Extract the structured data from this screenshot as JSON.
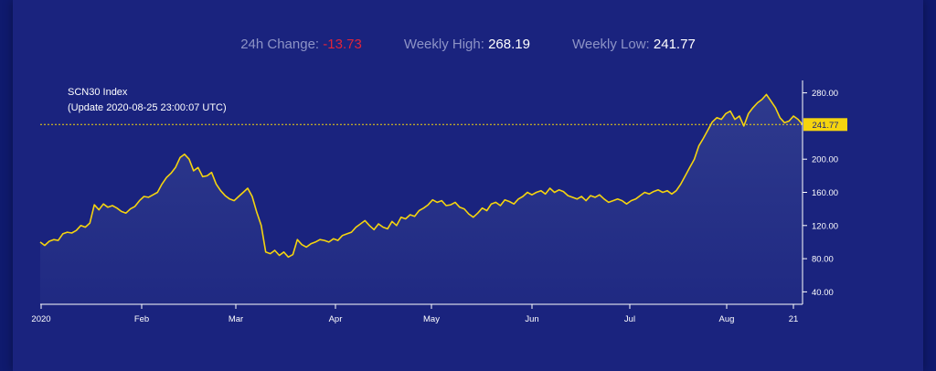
{
  "stats": {
    "change_label": "24h Change:",
    "change_value": "-13.73",
    "high_label": "Weekly High:",
    "high_value": "268.19",
    "low_label": "Weekly Low:",
    "low_value": "241.77"
  },
  "chart_data": {
    "type": "area",
    "title": "SCN30 Index",
    "subtitle": "(Update 2020-08-25 23:00:07 UTC)",
    "x_tick_labels": [
      "2020",
      "Feb",
      "Mar",
      "Apr",
      "May",
      "Jun",
      "Jul",
      "Aug",
      "21"
    ],
    "y_ticks": [
      40,
      80,
      120,
      160,
      200,
      280
    ],
    "y_tick_labels": [
      "40.00",
      "80.00",
      "120.00",
      "160.00",
      "200.00",
      "280.00"
    ],
    "ylim": [
      25,
      295
    ],
    "last_value": 241.77,
    "last_value_label": "241.77",
    "grid": false,
    "colors": {
      "line": "#f5d40f",
      "marker_bg": "#f5d40f",
      "marker_text": "#1a237e",
      "axis": "#ffffff"
    },
    "series": [
      {
        "values": [
          100,
          96,
          101,
          103,
          102,
          110,
          112,
          111,
          114,
          120,
          118,
          123,
          145,
          139,
          146,
          142,
          144,
          141,
          137,
          135,
          140,
          143,
          150,
          155,
          154,
          157,
          160,
          170,
          178,
          183,
          190,
          202,
          206,
          200,
          186,
          190,
          179,
          180,
          184,
          170,
          162,
          156,
          152,
          150,
          155,
          160,
          165,
          155,
          136,
          120,
          88,
          86,
          90,
          84,
          88,
          82,
          85,
          103,
          97,
          94,
          98,
          100,
          103,
          102,
          100,
          104,
          102,
          108,
          110,
          112,
          118,
          122,
          126,
          120,
          115,
          122,
          118,
          116,
          125,
          120,
          130,
          128,
          133,
          131,
          138,
          141,
          145,
          151,
          148,
          150,
          144,
          145,
          148,
          142,
          140,
          134,
          130,
          135,
          141,
          138,
          146,
          148,
          144,
          151,
          149,
          146,
          152,
          155,
          160,
          157,
          160,
          162,
          158,
          165,
          160,
          163,
          161,
          156,
          154,
          152,
          155,
          150,
          156,
          154,
          157,
          152,
          148,
          150,
          152,
          150,
          146,
          150,
          152,
          156,
          160,
          158,
          161,
          163,
          160,
          162,
          158,
          162,
          170,
          180,
          190,
          200,
          216,
          225,
          235,
          245,
          250,
          248,
          255,
          258,
          248,
          252,
          240,
          255,
          262,
          268,
          272,
          278,
          270,
          262,
          250,
          244,
          246,
          252,
          248,
          241.77
        ]
      }
    ]
  }
}
